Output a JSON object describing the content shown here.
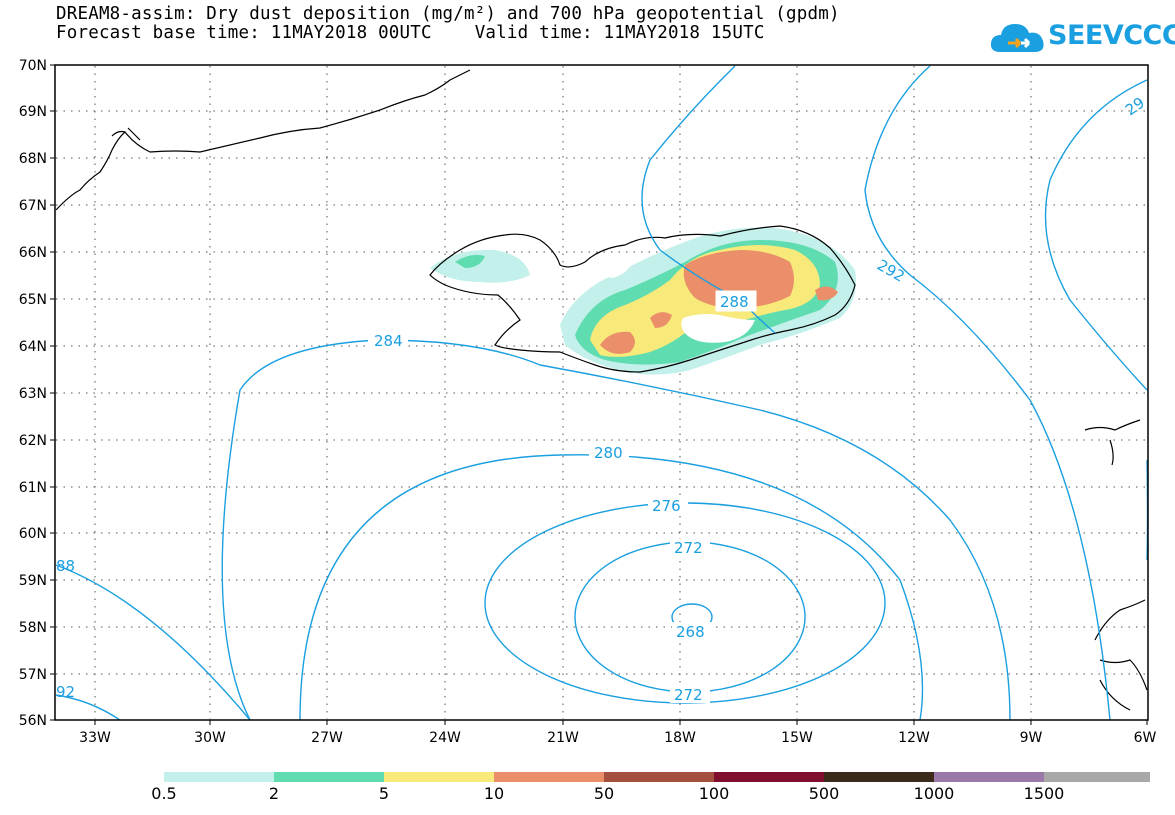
{
  "title": {
    "line1": "DREAM8-assim: Dry dust deposition (mg/m²) and 700 hPa geopotential (gpdm)",
    "line2": "Forecast base time: 11MAY2018 00UTC    Valid time: 11MAY2018 15UTC"
  },
  "logo": {
    "text": "SEEVCCC",
    "icon": "cloud-icon",
    "color": "#1a9fe0"
  },
  "map": {
    "lat_labels": [
      "70N",
      "69N",
      "68N",
      "67N",
      "66N",
      "65N",
      "64N",
      "63N",
      "62N",
      "61N",
      "60N",
      "59N",
      "58N",
      "57N",
      "56N"
    ],
    "lon_labels": [
      "33W",
      "30W",
      "27W",
      "24W",
      "21W",
      "18W",
      "15W",
      "12W",
      "9W",
      "6W"
    ],
    "contour_color": "#1a9fe0",
    "contour_labels": [
      "284",
      "280",
      "276",
      "272",
      "268",
      "272",
      "288",
      "292",
      "29",
      "88",
      "92"
    ]
  },
  "legend": {
    "colors": [
      "#c3f0ea",
      "#5fdcb0",
      "#f7e97a",
      "#ea8f6a",
      "#a5503f",
      "#7f0f2c",
      "#3c2a1a",
      "#9a78aa",
      "#a8a8a8"
    ],
    "labels": [
      "0.5",
      "2",
      "5",
      "10",
      "50",
      "100",
      "500",
      "1000",
      "1500"
    ]
  }
}
